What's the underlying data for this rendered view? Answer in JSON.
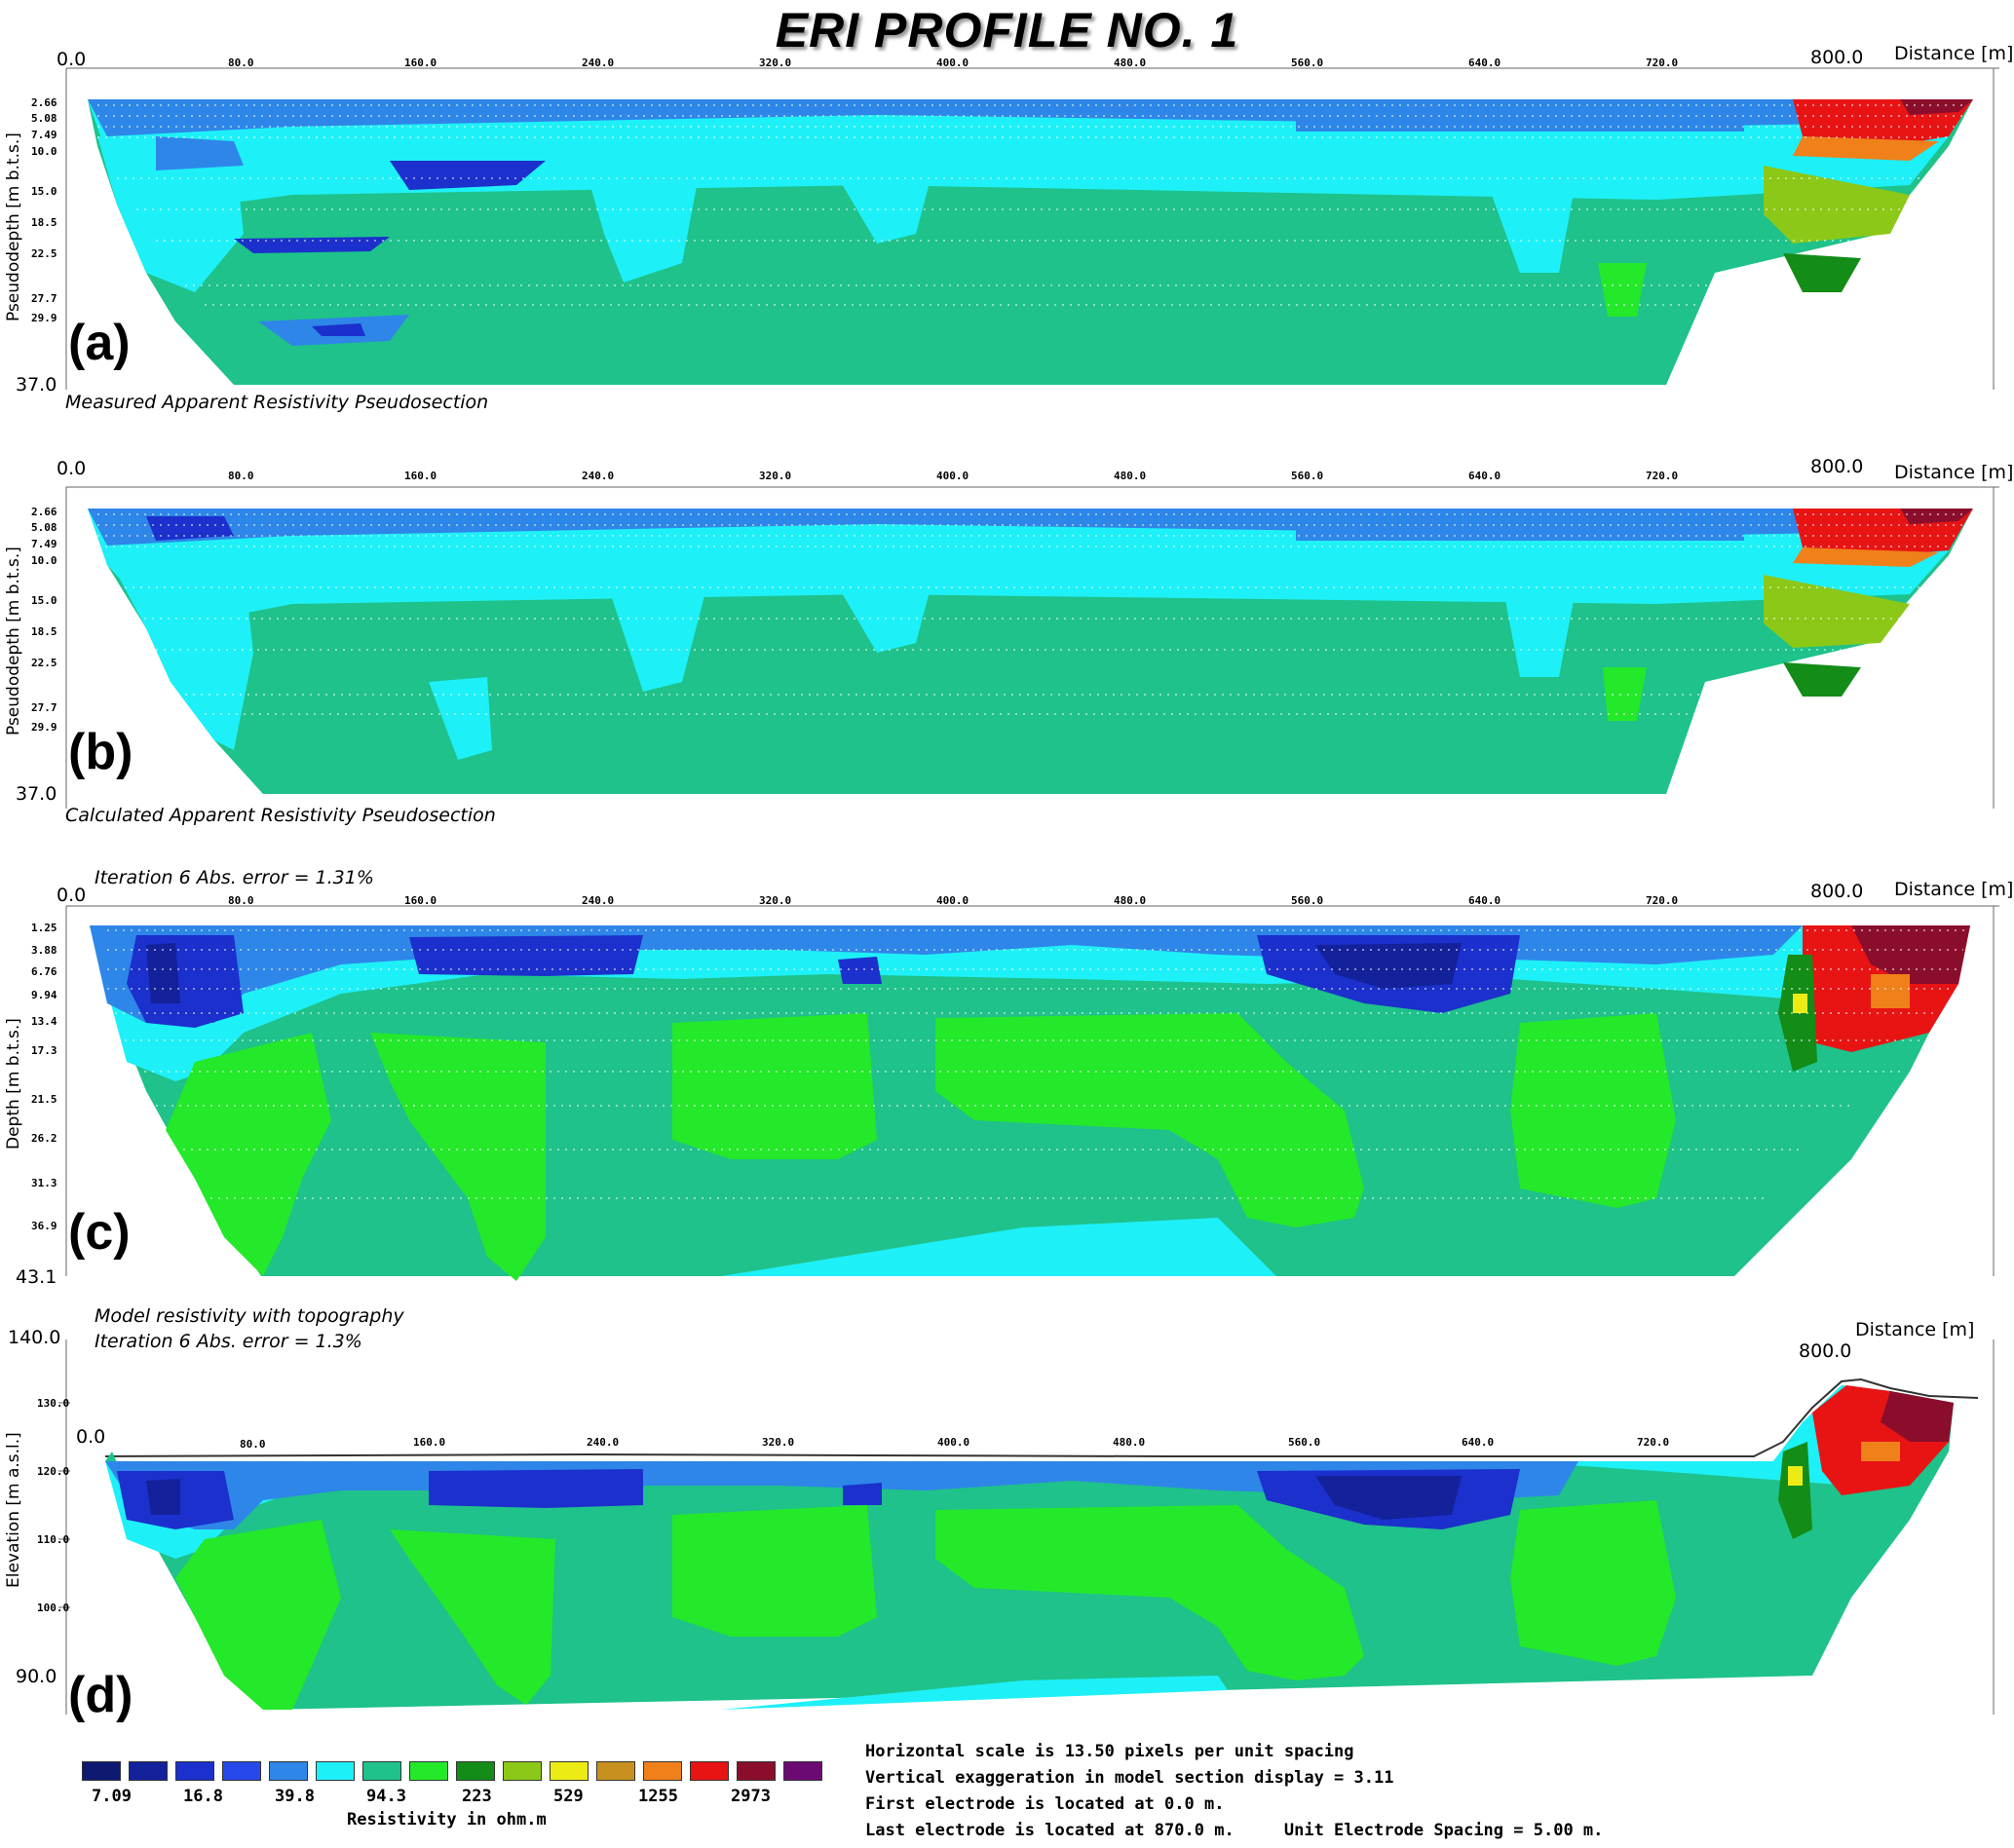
{
  "title": "ERI PROFILE NO. 1",
  "colors": {
    "band": [
      "#0e1a72",
      "#13219a",
      "#1b30cc",
      "#2748ea",
      "#2e86e8",
      "#1ef0f8",
      "#1ec28a",
      "#24e82a",
      "#138c18",
      "#8cc818",
      "#ecec14",
      "#c8901e",
      "#f0801a",
      "#e81414",
      "#8a0e2c",
      "#6c0a74"
    ],
    "background": "#ffffff"
  },
  "panels": [
    {
      "id": "a",
      "letter": "(a)",
      "caption": "Measured Apparent Resistivity Pseudosection",
      "distance_label": "Distance [m]",
      "ylabel": "Pseudodepth [m b.t.s.]",
      "x_start_label": "0.0",
      "x_end_label": "800.0",
      "bottom_label": "37.0",
      "y_ticks": [
        "2.66",
        "5.08",
        "7.49",
        "10.0",
        "15.0",
        "18.5",
        "22.5",
        "27.7",
        "29.9"
      ]
    },
    {
      "id": "b",
      "letter": "(b)",
      "caption": "Calculated Apparent Resistivity Pseudosection",
      "distance_label": "Distance [m]",
      "ylabel": "Pseudodepth [m b.t.s.]",
      "x_start_label": "0.0",
      "x_end_label": "800.0",
      "bottom_label": "37.0",
      "y_ticks": [
        "2.66",
        "5.08",
        "7.49",
        "10.0",
        "15.0",
        "18.5",
        "22.5",
        "27.7",
        "29.9"
      ]
    },
    {
      "id": "c",
      "letter": "(c)",
      "caption": "Iteration 6 Abs. error = 1.31%",
      "distance_label": "Distance [m]",
      "ylabel": "Depth [m b.t.s.]",
      "x_start_label": "0.0",
      "x_end_label": "800.0",
      "bottom_label": "43.1",
      "y_ticks": [
        "1.25",
        "3.88",
        "6.76",
        "9.94",
        "13.4",
        "17.3",
        "21.5",
        "26.2",
        "31.3",
        "36.9"
      ]
    },
    {
      "id": "d",
      "letter": "(d)",
      "caption_line1": "Model resistivity with topography",
      "caption_line2": "Iteration 6 Abs. error = 1.3%",
      "distance_label": "Distance [m]",
      "ylabel": "Elevation [m a.s.l.]",
      "x_start_label": "0.0",
      "x_end_label": "800.0",
      "y_top_label": "140.0",
      "y_bottom_label": "90.0",
      "y_ticks": [
        "130.0",
        "120.0",
        "110.0",
        "100.0"
      ]
    }
  ],
  "x_ticks": [
    "80.0",
    "160.0",
    "240.0",
    "320.0",
    "400.0",
    "480.0",
    "560.0",
    "640.0",
    "720.0"
  ],
  "legend": {
    "labels": [
      "7.09",
      "16.8",
      "39.8",
      "94.3",
      "223",
      "529",
      "1255",
      "2973"
    ],
    "title": "Resistivity in ohm.m"
  },
  "notes": [
    "Horizontal scale is 13.50 pixels per unit spacing",
    "Vertical exaggeration in model section display = 3.11",
    "First electrode is located at 0.0  m.",
    "Last electrode is located at 870.0 m.     Unit Electrode Spacing = 5.00 m."
  ],
  "chart_data": [
    {
      "type": "heatmap",
      "title": "ERI PROFILE NO. 1",
      "subtitle": "Measured Apparent Resistivity Pseudosection",
      "xlabel": "Distance [m]",
      "ylabel": "Pseudodepth [m b.t.s.]",
      "x_ticks": [
        0,
        80,
        160,
        240,
        320,
        400,
        480,
        560,
        640,
        720,
        800
      ],
      "y_ticks": [
        2.66,
        5.08,
        7.49,
        10.0,
        15.0,
        18.5,
        22.5,
        27.7,
        29.9,
        37.0
      ],
      "ylim": [
        37.0,
        0
      ],
      "colorbar_levels": [
        7.09,
        16.8,
        39.8,
        94.3,
        223,
        529,
        1255,
        2973
      ],
      "colorbar_label": "Resistivity in ohm.m"
    },
    {
      "type": "heatmap",
      "subtitle": "Calculated Apparent Resistivity Pseudosection",
      "xlabel": "Distance [m]",
      "ylabel": "Pseudodepth [m b.t.s.]",
      "x_ticks": [
        0,
        80,
        160,
        240,
        320,
        400,
        480,
        560,
        640,
        720,
        800
      ],
      "y_ticks": [
        2.66,
        5.08,
        7.49,
        10.0,
        15.0,
        18.5,
        22.5,
        27.7,
        29.9,
        37.0
      ],
      "ylim": [
        37.0,
        0
      ],
      "colorbar_levels": [
        7.09,
        16.8,
        39.8,
        94.3,
        223,
        529,
        1255,
        2973
      ]
    },
    {
      "type": "heatmap",
      "subtitle": "Iteration 6 Abs. error = 1.31%",
      "xlabel": "Distance [m]",
      "ylabel": "Depth [m b.t.s.]",
      "x_ticks": [
        0,
        80,
        160,
        240,
        320,
        400,
        480,
        560,
        640,
        720,
        800
      ],
      "y_ticks": [
        1.25,
        3.88,
        6.76,
        9.94,
        13.4,
        17.3,
        21.5,
        26.2,
        31.3,
        36.9,
        43.1
      ],
      "ylim": [
        43.1,
        0
      ],
      "colorbar_levels": [
        7.09,
        16.8,
        39.8,
        94.3,
        223,
        529,
        1255,
        2973
      ]
    },
    {
      "type": "heatmap",
      "subtitle": "Model resistivity with topography",
      "xlabel": "Distance [m]",
      "ylabel": "Elevation [m a.s.l.]",
      "x_ticks": [
        0,
        80,
        160,
        240,
        320,
        400,
        480,
        560,
        640,
        720,
        800
      ],
      "y_ticks": [
        90.0,
        100.0,
        110.0,
        120.0,
        130.0,
        140.0
      ],
      "ylim": [
        85,
        140.0
      ],
      "colorbar_levels": [
        7.09,
        16.8,
        39.8,
        94.3,
        223,
        529,
        1255,
        2973
      ],
      "colorbar_label": "Resistivity in ohm.m"
    }
  ]
}
